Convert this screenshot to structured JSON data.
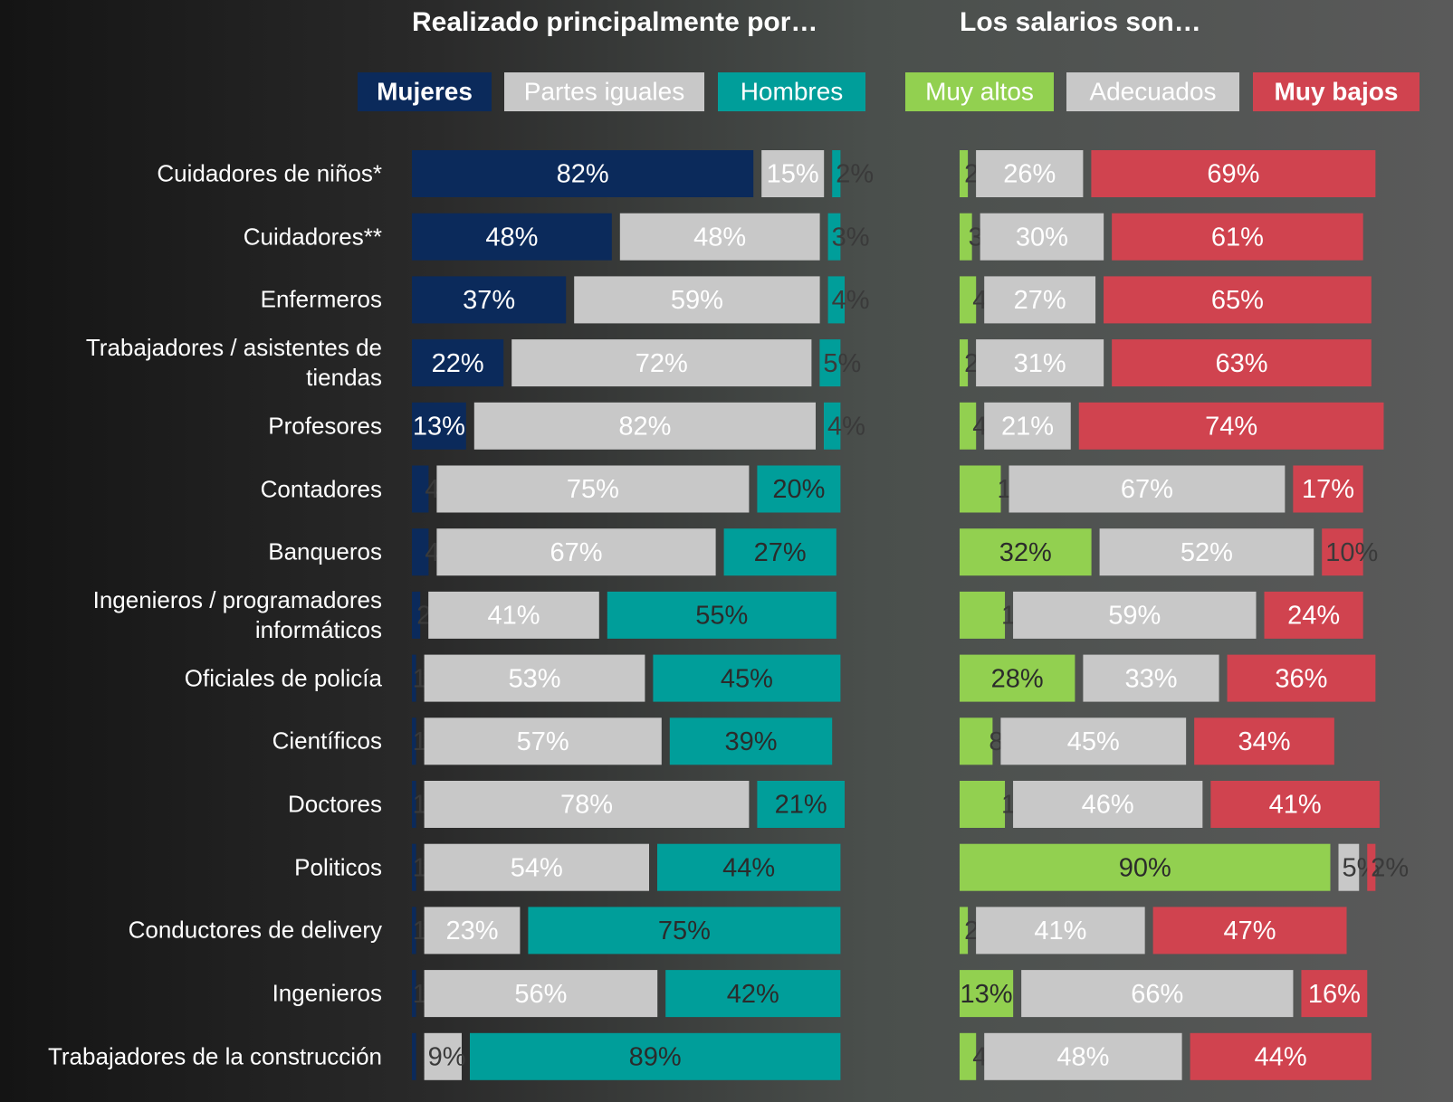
{
  "chart_data": [
    {
      "type": "bar",
      "orientation": "horizontal",
      "stacked": true,
      "title": "Realizado principalmente por…",
      "categories": [
        "Cuidadores de niños*",
        "Cuidadores**",
        "Enfermeros",
        "Trabajadores / asistentes de tiendas",
        "Profesores",
        "Contadores",
        "Banqueros",
        "Ingenieros / programadores informáticos",
        "Oficiales de policía",
        "Científicos",
        "Doctores",
        "Politicos",
        "Conductores de delivery",
        "Ingenieros",
        "Trabajadores de la construcción"
      ],
      "series": [
        {
          "name": "Mujeres",
          "color": "#0b2a5b",
          "values": [
            82,
            48,
            37,
            22,
            13,
            4,
            4,
            2,
            1,
            1,
            1,
            1,
            1,
            1,
            1
          ],
          "value_labels": [
            "82%",
            "48%",
            "37%",
            "22%",
            "13%",
            "4%",
            "4%",
            "2%",
            "1%",
            "1%",
            "1%",
            "1%",
            "1%",
            "1%",
            null
          ]
        },
        {
          "name": "Partes iguales",
          "color": "#c8c8c8",
          "values": [
            15,
            48,
            59,
            72,
            82,
            75,
            67,
            41,
            53,
            57,
            78,
            54,
            23,
            56,
            9
          ],
          "value_labels": [
            "15%",
            "48%",
            "59%",
            "72%",
            "82%",
            "75%",
            "67%",
            "41%",
            "53%",
            "57%",
            "78%",
            "54%",
            "23%",
            "56%",
            "9%"
          ]
        },
        {
          "name": "Hombres",
          "color": "#009e9a",
          "values": [
            2,
            3,
            4,
            5,
            4,
            20,
            27,
            55,
            45,
            39,
            21,
            44,
            75,
            42,
            89
          ],
          "value_labels": [
            "2%",
            "3%",
            "4%",
            "5%",
            "4%",
            "20%",
            "27%",
            "55%",
            "45%",
            "39%",
            "21%",
            "44%",
            "75%",
            "42%",
            "89%"
          ]
        }
      ]
    },
    {
      "type": "bar",
      "orientation": "horizontal",
      "stacked": true,
      "title": "Los salarios son…",
      "series": [
        {
          "name": "Muy altos",
          "color": "#92d050",
          "values": [
            2,
            3,
            4,
            2,
            4,
            10,
            32,
            11,
            28,
            8,
            11,
            90,
            2,
            13,
            4
          ],
          "value_labels": [
            "2%",
            "3%",
            "4%",
            "2%",
            "4%",
            "10%",
            "32%",
            "11%",
            "28%",
            "8%",
            "11%",
            "90%",
            "2%",
            "13%",
            "4%"
          ]
        },
        {
          "name": "Adecuados",
          "color": "#c8c8c8",
          "values": [
            26,
            30,
            27,
            31,
            21,
            67,
            52,
            59,
            33,
            45,
            46,
            5,
            41,
            66,
            48
          ],
          "value_labels": [
            "26%",
            "30%",
            "27%",
            "31%",
            "21%",
            "67%",
            "52%",
            "59%",
            "33%",
            "45%",
            "46%",
            "5%",
            "41%",
            "66%",
            "48%"
          ]
        },
        {
          "name": "Muy bajos",
          "color": "#d0434f",
          "values": [
            69,
            61,
            65,
            63,
            74,
            17,
            10,
            24,
            36,
            34,
            41,
            2,
            47,
            16,
            44
          ],
          "value_labels": [
            "69%",
            "61%",
            "65%",
            "63%",
            "74%",
            "17%",
            "10%",
            "24%",
            "36%",
            "34%",
            "41%",
            "2%",
            "47%",
            "16%",
            "44%"
          ]
        }
      ]
    }
  ]
}
